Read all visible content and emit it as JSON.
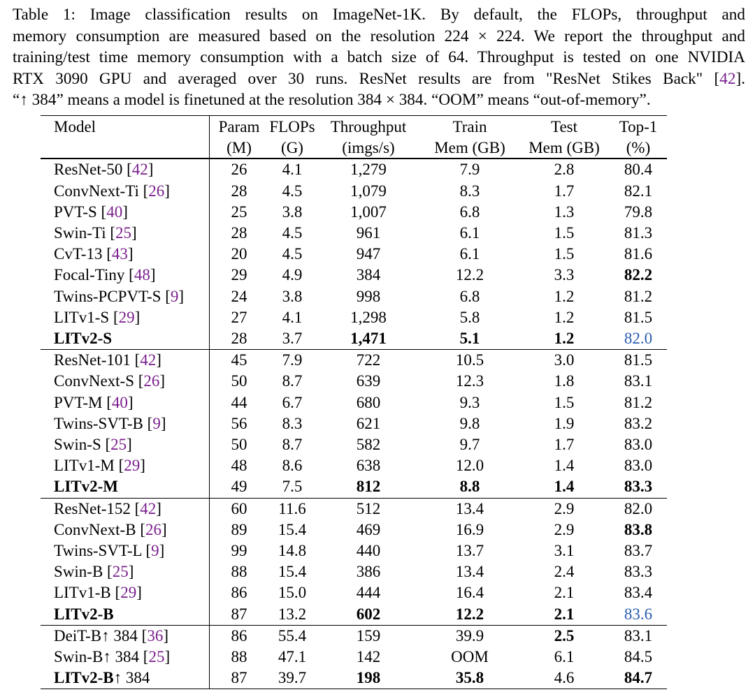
{
  "caption": {
    "lines": [
      "Table 1: Image classification results on ImageNet-1K. By default, the FLOPs, throughput and",
      "memory consumption are measured based on the resolution 224 × 224. We report the throughput and",
      "training/test time memory consumption with a batch size of 64. Throughput is tested on one NVIDIA",
      "RTX 3090 GPU and averaged over 30 runs. ResNet results are from \"ResNet Stikes Back\" [42].",
      "“↑ 384” means a model is finetuned at the resolution 384 × 384. “OOM” means “out-of-memory”."
    ]
  },
  "table": {
    "headers": [
      [
        "Model",
        ""
      ],
      [
        "Param",
        "(M)"
      ],
      [
        "FLOPs",
        "(G)"
      ],
      [
        "Throughput",
        "(imgs/s)"
      ],
      [
        "Train",
        "Mem (GB)"
      ],
      [
        "Test",
        "Mem (GB)"
      ],
      [
        "Top-1",
        "(%)"
      ]
    ],
    "groups": [
      [
        {
          "model": "ResNet-50",
          "cite": "42",
          "cells": [
            "26",
            "4.1",
            "1,279",
            "7.9",
            "2.8",
            "80.4"
          ]
        },
        {
          "model": "ConvNext-Ti",
          "cite": "26",
          "cells": [
            "28",
            "4.5",
            "1,079",
            "8.3",
            "1.7",
            "82.1"
          ]
        },
        {
          "model": "PVT-S",
          "cite": "40",
          "cells": [
            "25",
            "3.8",
            "1,007",
            "6.8",
            "1.3",
            "79.8"
          ]
        },
        {
          "model": "Swin-Ti",
          "cite": "25",
          "cells": [
            "28",
            "4.5",
            "961",
            "6.1",
            "1.5",
            "81.3"
          ]
        },
        {
          "model": "CvT-13",
          "cite": "43",
          "cells": [
            "20",
            "4.5",
            "947",
            "6.1",
            "1.5",
            "81.6"
          ]
        },
        {
          "model": "Focal-Tiny",
          "cite": "48",
          "cells": [
            "29",
            "4.9",
            "384",
            "12.2",
            "3.3",
            "82.2"
          ],
          "bold": [
            5
          ]
        },
        {
          "model": "Twins-PCPVT-S",
          "cite": "9",
          "cells": [
            "24",
            "3.8",
            "998",
            "6.8",
            "1.2",
            "81.2"
          ]
        },
        {
          "model": "LITv1-S",
          "cite": "29",
          "cells": [
            "27",
            "4.1",
            "1,298",
            "5.8",
            "1.2",
            "81.5"
          ]
        },
        {
          "model": "LITv2-S",
          "cite": "",
          "cells": [
            "28",
            "3.7",
            "1,471",
            "5.1",
            "1.2",
            "82.0"
          ],
          "boldModel": true,
          "bold": [
            2,
            3,
            4
          ],
          "blue": [
            5
          ]
        }
      ],
      [
        {
          "model": "ResNet-101",
          "cite": "42",
          "cells": [
            "45",
            "7.9",
            "722",
            "10.5",
            "3.0",
            "81.5"
          ]
        },
        {
          "model": "ConvNext-S",
          "cite": "26",
          "cells": [
            "50",
            "8.7",
            "639",
            "12.3",
            "1.8",
            "83.1"
          ]
        },
        {
          "model": "PVT-M",
          "cite": "40",
          "cells": [
            "44",
            "6.7",
            "680",
            "9.3",
            "1.5",
            "81.2"
          ]
        },
        {
          "model": "Twins-SVT-B",
          "cite": "9",
          "cells": [
            "56",
            "8.3",
            "621",
            "9.8",
            "1.9",
            "83.2"
          ]
        },
        {
          "model": "Swin-S",
          "cite": "25",
          "cells": [
            "50",
            "8.7",
            "582",
            "9.7",
            "1.7",
            "83.0"
          ]
        },
        {
          "model": "LITv1-M",
          "cite": "29",
          "cells": [
            "48",
            "8.6",
            "638",
            "12.0",
            "1.4",
            "83.0"
          ]
        },
        {
          "model": "LITv2-M",
          "cite": "",
          "cells": [
            "49",
            "7.5",
            "812",
            "8.8",
            "1.4",
            "83.3"
          ],
          "boldModel": true,
          "bold": [
            2,
            3,
            4,
            5
          ]
        }
      ],
      [
        {
          "model": "ResNet-152",
          "cite": "42",
          "cells": [
            "60",
            "11.6",
            "512",
            "13.4",
            "2.9",
            "82.0"
          ]
        },
        {
          "model": "ConvNext-B",
          "cite": "26",
          "cells": [
            "89",
            "15.4",
            "469",
            "16.9",
            "2.9",
            "83.8"
          ],
          "bold": [
            5
          ]
        },
        {
          "model": "Twins-SVT-L",
          "cite": "9",
          "cells": [
            "99",
            "14.8",
            "440",
            "13.7",
            "3.1",
            "83.7"
          ]
        },
        {
          "model": "Swin-B",
          "cite": "25",
          "cells": [
            "88",
            "15.4",
            "386",
            "13.4",
            "2.4",
            "83.3"
          ]
        },
        {
          "model": "LITv1-B",
          "cite": "29",
          "cells": [
            "86",
            "15.0",
            "444",
            "16.4",
            "2.1",
            "83.4"
          ]
        },
        {
          "model": "LITv2-B",
          "cite": "",
          "cells": [
            "87",
            "13.2",
            "602",
            "12.2",
            "2.1",
            "83.6"
          ],
          "boldModel": true,
          "bold": [
            2,
            3,
            4
          ],
          "blue": [
            5
          ]
        }
      ],
      [
        {
          "model": "DeiT-B",
          "suffix": "↑ 384",
          "cite": "36",
          "cells": [
            "86",
            "55.4",
            "159",
            "39.9",
            "2.5",
            "83.1"
          ],
          "bold": [
            4
          ]
        },
        {
          "model": "Swin-B",
          "suffix": "↑ 384",
          "cite": "25",
          "cells": [
            "88",
            "47.1",
            "142",
            "OOM",
            "6.1",
            "84.5"
          ]
        },
        {
          "model": "LITv2-B",
          "suffix": "↑ 384",
          "cite": "",
          "cells": [
            "87",
            "39.7",
            "198",
            "35.8",
            "4.6",
            "84.7"
          ],
          "boldModel": true,
          "bold": [
            2,
            3,
            5
          ]
        }
      ]
    ]
  }
}
